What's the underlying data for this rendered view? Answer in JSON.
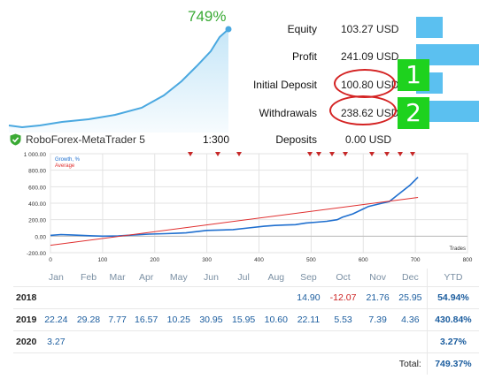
{
  "summary": {
    "growth_pct": "749%",
    "equity_label": "Equity",
    "equity_value": "103.27 USD",
    "profit_label": "Profit",
    "profit_value": "241.09 USD",
    "initial_deposit_label": "Initial Deposit",
    "initial_deposit_value": "100.80 USD",
    "withdrawals_label": "Withdrawals",
    "withdrawals_value": "238.62 USD",
    "deposits_label": "Deposits",
    "deposits_value": "0.00 USD",
    "badge_1": "1",
    "badge_2": "2"
  },
  "account": {
    "name": "RoboForex-MetaTrader 5",
    "leverage": "1:300"
  },
  "chart_data": {
    "type": "line",
    "xlabel": "Trades",
    "ylabel": "",
    "xlim": [
      0,
      800
    ],
    "ylim": [
      -200,
      1000
    ],
    "x_ticks": [
      "0",
      "100",
      "200",
      "300",
      "400",
      "500",
      "600",
      "700",
      "800"
    ],
    "y_ticks": [
      "1 000.00",
      "800.00",
      "600.00",
      "400.00",
      "200.00",
      "0.00",
      "-200.00"
    ],
    "series": [
      {
        "name": "Growth, %",
        "color": "#1f6fcf",
        "x": [
          0,
          20,
          40,
          60,
          80,
          100,
          130,
          160,
          190,
          220,
          240,
          260,
          280,
          300,
          330,
          350,
          380,
          410,
          430,
          450,
          470,
          490,
          510,
          530,
          550,
          560,
          580,
          600,
          610,
          630,
          650,
          670,
          690,
          705
        ],
        "y": [
          10,
          20,
          15,
          10,
          5,
          0,
          3,
          15,
          25,
          30,
          35,
          40,
          55,
          70,
          75,
          80,
          100,
          120,
          130,
          135,
          140,
          160,
          170,
          180,
          200,
          230,
          270,
          330,
          360,
          390,
          420,
          520,
          620,
          715
        ]
      },
      {
        "name": "Average",
        "color": "#e03030",
        "x": [
          0,
          705
        ],
        "y": [
          -110,
          470
        ]
      }
    ]
  },
  "table": {
    "headers": [
      "",
      "Jan",
      "Feb",
      "Mar",
      "Apr",
      "May",
      "Jun",
      "Jul",
      "Aug",
      "Sep",
      "Oct",
      "Nov",
      "Dec",
      "YTD"
    ],
    "rows": [
      {
        "year": "2018",
        "cells": [
          "",
          "",
          "",
          "",
          "",
          "",
          "",
          "",
          "14.90",
          "-12.07",
          "21.76",
          "25.95"
        ],
        "ytd": "54.94%"
      },
      {
        "year": "2019",
        "cells": [
          "22.24",
          "29.28",
          "7.77",
          "16.57",
          "10.25",
          "30.95",
          "15.95",
          "10.60",
          "22.11",
          "5.53",
          "7.39",
          "4.36"
        ],
        "ytd": "430.84%"
      },
      {
        "year": "2020",
        "cells": [
          "3.27",
          "",
          "",
          "",
          "",
          "",
          "",
          "",
          "",
          "",
          "",
          ""
        ],
        "ytd": "3.27%"
      }
    ],
    "total_label": "Total:",
    "total_value": "749.37%"
  },
  "colors": {
    "accent_green": "#3aaa35",
    "bar_blue": "#5bc0f0",
    "highlight_red": "#d42323",
    "badge_green": "#1ed21e"
  }
}
